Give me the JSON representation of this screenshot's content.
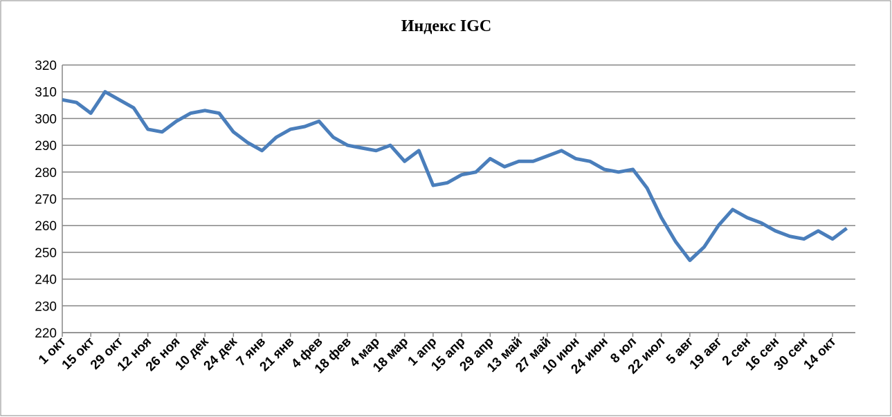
{
  "chart_data": {
    "type": "line",
    "title": "Индекс IGC",
    "categories": [
      "1 окт",
      null,
      "15 окт",
      null,
      "29 окт",
      null,
      "12 ноя",
      null,
      "26 ноя",
      null,
      "10 дек",
      null,
      "24 дек",
      null,
      "7 янв",
      null,
      "21 янв",
      null,
      "4 фев",
      null,
      "18 фев",
      null,
      "4 мар",
      null,
      "18 мар",
      null,
      "1 апр",
      null,
      "15 апр",
      null,
      "29 апр",
      null,
      "13 май",
      null,
      "27 май",
      null,
      "10 июн",
      null,
      "24 июн",
      null,
      "8 юл",
      null,
      "22 июл",
      null,
      "5 авг",
      null,
      "19 авг",
      null,
      "2 сен",
      null,
      "16 сен",
      null,
      "30 сен",
      null,
      "14 окт",
      null
    ],
    "series": [
      {
        "name": "Индекс IGC",
        "color": "#4a7ebb",
        "values": [
          307,
          306,
          302,
          310,
          307,
          304,
          296,
          295,
          299,
          302,
          303,
          302,
          295,
          291,
          288,
          293,
          296,
          297,
          299,
          293,
          290,
          289,
          288,
          290,
          284,
          288,
          275,
          276,
          279,
          280,
          285,
          282,
          284,
          284,
          286,
          288,
          285,
          284,
          281,
          280,
          281,
          274,
          263,
          254,
          247,
          252,
          260,
          266,
          263,
          261,
          258,
          256,
          255,
          258,
          255,
          259
        ]
      }
    ],
    "ylim": [
      220,
      320
    ],
    "yticks": [
      220,
      230,
      240,
      250,
      260,
      270,
      280,
      290,
      300,
      310,
      320
    ],
    "grid": true
  }
}
